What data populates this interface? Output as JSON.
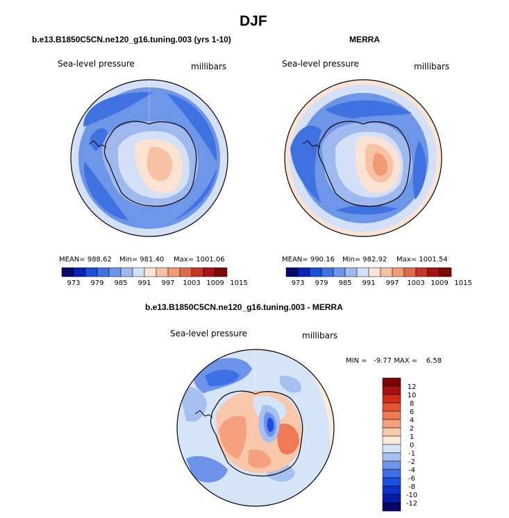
{
  "title": "DJF",
  "colors": {
    "abs_scale": [
      "#08086b",
      "#0a22b8",
      "#1c4fd8",
      "#3f72e0",
      "#6d95e8",
      "#9fb9ef",
      "#d3e0f7",
      "#fbe3d4",
      "#f6c2a3",
      "#f09b76",
      "#e16a4b",
      "#c73524",
      "#a31315",
      "#7c0a0a"
    ],
    "diff_scale": [
      "#050565",
      "#0a1aa8",
      "#0a30c8",
      "#1c4fe0",
      "#3d6fe6",
      "#6d93ea",
      "#a6c0f1",
      "#d6e4f8",
      "#fdeadb",
      "#f9c7a9",
      "#f4a07c",
      "#ee7a56",
      "#e4532f",
      "#cf2d17",
      "#a81010",
      "#7c0606"
    ]
  },
  "panels": [
    {
      "title": "b.e13.B1850C5CN.ne120_g16.tuning.003 (yrs 1-10)",
      "variable": "Sea-level pressure",
      "units": "millibars",
      "mean_label": "MEAN= 988.62",
      "min_label": "Min= 981.40",
      "max_label": "Max= 1001.06"
    },
    {
      "title": "MERRA",
      "variable": "Sea-level pressure",
      "units": "millibars",
      "mean_label": "MEAN= 990.16",
      "min_label": "Min= 982.92",
      "max_label": "Max= 1001.54"
    },
    {
      "title": "b.e13.B1850C5CN.ne120_g16.tuning.003 - MERRA",
      "variable": "Sea-level pressure",
      "units": "millibars",
      "minmax_label": "MIN =   -9.77 MAX =    6.58"
    }
  ],
  "chart_data": [
    {
      "type": "heatmap",
      "projection": "south-polar-stereographic",
      "title": "b.e13.B1850C5CN.ne120_g16.tuning.003 (yrs 1-10)",
      "variable": "Sea-level pressure",
      "units": "millibars",
      "mean": 988.62,
      "min": 981.4,
      "max": 1001.06,
      "colorbar_levels": [
        "973",
        "979",
        "985",
        "991",
        "997",
        "1003",
        "1009",
        "1015"
      ],
      "colorbar_bins": 14
    },
    {
      "type": "heatmap",
      "projection": "south-polar-stereographic",
      "title": "MERRA",
      "variable": "Sea-level pressure",
      "units": "millibars",
      "mean": 990.16,
      "min": 982.92,
      "max": 1001.54,
      "colorbar_levels": [
        "973",
        "979",
        "985",
        "991",
        "997",
        "1003",
        "1009",
        "1015"
      ],
      "colorbar_bins": 14
    },
    {
      "type": "heatmap",
      "projection": "south-polar-stereographic",
      "title": "b.e13.B1850C5CN.ne120_g16.tuning.003 - MERRA",
      "variable": "Sea-level pressure",
      "units": "millibars",
      "min": -9.77,
      "max": 6.58,
      "colorbar_levels": [
        "12",
        "10",
        "8",
        "6",
        "4",
        "2",
        "1",
        "0",
        "-1",
        "-2",
        "-4",
        "-6",
        "-8",
        "-10",
        "-12"
      ],
      "colorbar_bins": 16
    }
  ]
}
